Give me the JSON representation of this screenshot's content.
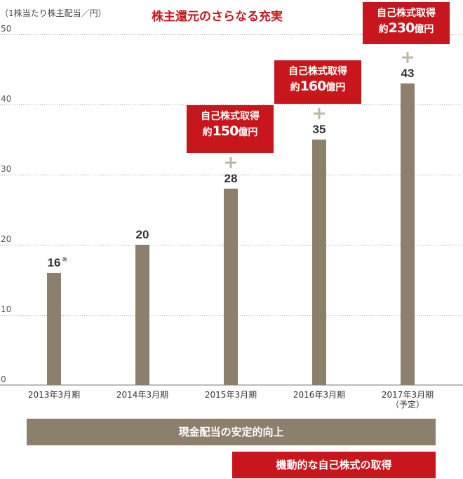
{
  "unit_label": "（1株当たり株主配当／円）",
  "title": "株主還元のさらなる充実",
  "callouts": [
    {
      "line1": "自己株式取得",
      "prefix": "約",
      "amount": "150",
      "suffix": "億円"
    },
    {
      "line1": "自己株式取得",
      "prefix": "約",
      "amount": "160",
      "suffix": "億円"
    },
    {
      "line1": "自己株式取得",
      "prefix": "約",
      "amount": "230",
      "suffix": "億円"
    }
  ],
  "bands": {
    "dividend": "現金配当の安定的向上",
    "buyback": "機動的な自己株式の取得"
  },
  "colors": {
    "bar": "#8c806c",
    "accent": "#c8161d",
    "plus": "#c0b6a6",
    "grid": "#999999"
  },
  "chart_data": {
    "type": "bar",
    "categories": [
      "2013年3月期",
      "2014年3月期",
      "2015年3月期",
      "2016年3月期",
      "2017年3月期"
    ],
    "category_notes": [
      "",
      "",
      "",
      "",
      "（予定）"
    ],
    "values": [
      16,
      20,
      28,
      35,
      43
    ],
    "value_labels": [
      "16",
      "20",
      "28",
      "35",
      "43"
    ],
    "value_marks": [
      "※",
      "",
      "",
      "",
      ""
    ],
    "plus_marks": [
      false,
      false,
      true,
      true,
      true
    ],
    "ylabel": "（1株当たり株主配当／円）",
    "ylim": [
      0,
      50
    ],
    "yticks": [
      0,
      10,
      20,
      30,
      40,
      50
    ],
    "grid": true,
    "grid_style": "dotted"
  }
}
